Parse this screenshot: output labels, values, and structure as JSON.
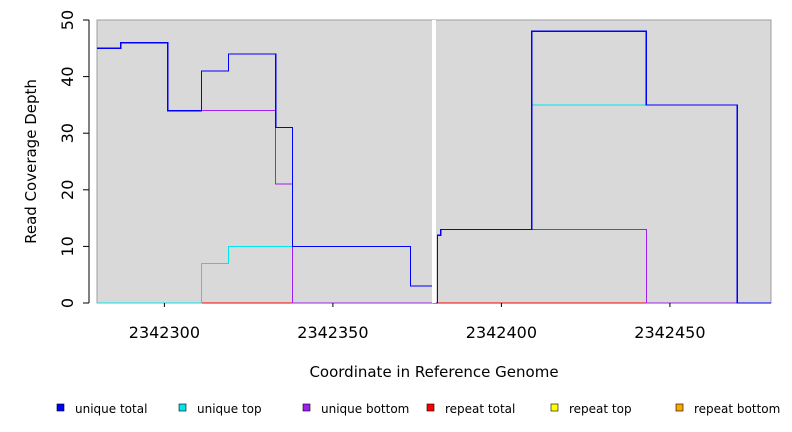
{
  "chart_data": {
    "type": "line",
    "style": "step",
    "xlabel": "Coordinate in Reference Genome",
    "ylabel": "Read Coverage Depth",
    "xlim": [
      2342280,
      2342480
    ],
    "ylim": [
      0,
      50
    ],
    "x_ticks": [
      2342300,
      2342350,
      2342400,
      2342450
    ],
    "x_tick_labels": [
      "2342300",
      "2342350",
      "2342400",
      "2342450"
    ],
    "y_ticks": [
      0,
      10,
      20,
      30,
      40,
      50
    ],
    "y_tick_labels": [
      "0",
      "10",
      "20",
      "30",
      "40",
      "50"
    ],
    "grid": false,
    "background": "#d9d9d9",
    "gap_marker_x": 2342380,
    "legend_position": "bottom",
    "series": [
      {
        "name": "unique total",
        "color": "#0000ff",
        "points": [
          [
            2342280,
            45
          ],
          [
            2342287,
            46
          ],
          [
            2342301,
            34
          ],
          [
            2342311,
            41
          ],
          [
            2342319,
            44
          ],
          [
            2342333,
            31
          ],
          [
            2342338,
            10
          ],
          [
            2342373,
            3
          ],
          [
            2342380,
            0
          ],
          [
            2342381,
            12
          ],
          [
            2342382,
            13
          ],
          [
            2342409,
            48
          ],
          [
            2342443,
            35
          ],
          [
            2342470,
            0
          ],
          [
            2342480,
            0
          ]
        ]
      },
      {
        "name": "unique top",
        "color": "#00e5ee",
        "points": [
          [
            2342280,
            0
          ],
          [
            2342311,
            7
          ],
          [
            2342319,
            10
          ],
          [
            2342373,
            3
          ],
          [
            2342380,
            0
          ],
          [
            2342381,
            12
          ],
          [
            2342382,
            13
          ],
          [
            2342409,
            35
          ],
          [
            2342470,
            0
          ],
          [
            2342480,
            0
          ]
        ]
      },
      {
        "name": "unique bottom",
        "color": "#a020f0",
        "points": [
          [
            2342280,
            45
          ],
          [
            2342287,
            46
          ],
          [
            2342301,
            34
          ],
          [
            2342333,
            21
          ],
          [
            2342338,
            0
          ],
          [
            2342381,
            12
          ],
          [
            2342382,
            13
          ],
          [
            2342443,
            0
          ],
          [
            2342480,
            0
          ]
        ]
      },
      {
        "name": "repeat total",
        "color": "#ff0000",
        "points": [
          [
            2342280,
            0
          ],
          [
            2342480,
            0
          ]
        ]
      },
      {
        "name": "repeat top",
        "color": "#ffff00",
        "points": [
          [
            2342280,
            0
          ],
          [
            2342480,
            0
          ]
        ]
      },
      {
        "name": "repeat bottom",
        "color": "#ffa500",
        "points": [
          [
            2342280,
            0
          ],
          [
            2342480,
            0
          ]
        ]
      }
    ]
  }
}
